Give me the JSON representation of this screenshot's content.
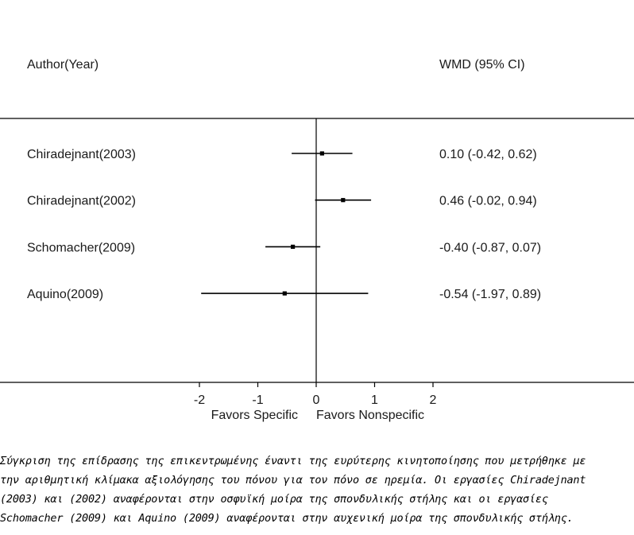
{
  "chart_data": {
    "type": "forest",
    "headers": {
      "left": "Author(Year)",
      "right": "WMD (95% CI)"
    },
    "studies": [
      {
        "label": "Chiradejnant(2003)",
        "estimate": 0.1,
        "lower": -0.42,
        "upper": 0.62,
        "ci_text": "0.10 (-0.42, 0.62)"
      },
      {
        "label": "Chiradejnant(2002)",
        "estimate": 0.46,
        "lower": -0.02,
        "upper": 0.94,
        "ci_text": "0.46 (-0.02, 0.94)"
      },
      {
        "label": "Schomacher(2009)",
        "estimate": -0.4,
        "lower": -0.87,
        "upper": 0.07,
        "ci_text": "-0.40 (-0.87, 0.07)"
      },
      {
        "label": "Aquino(2009)",
        "estimate": -0.54,
        "lower": -1.97,
        "upper": 0.89,
        "ci_text": "-0.54 (-1.97, 0.89)"
      }
    ],
    "x_ticks": [
      -2,
      -1,
      0,
      1,
      2
    ],
    "xlim": [
      -2,
      2
    ],
    "favors_left": "Favors Specific",
    "favors_right": "Favors Nonspecific",
    "grid": false
  },
  "caption": "Σύγκριση της επίδρασης της επικεντρωμένης έναντι της ευρύτερης κινητοποίησης που μετρήθηκε με\nτην αριθμητική κλίμακα αξιολόγησης του πόνου για τον πόνο σε ηρεμία. Οι εργασίες Chiradejnant\n(2003) και (2002) αναφέρονται στην οσφυϊκή μοίρα της σπονδυλικής στήλης και οι εργασίες\nSchomacher (2009) και Aquino (2009) αναφέρονται στην αυχενική μοίρα της σπονδυλικής στήλης."
}
